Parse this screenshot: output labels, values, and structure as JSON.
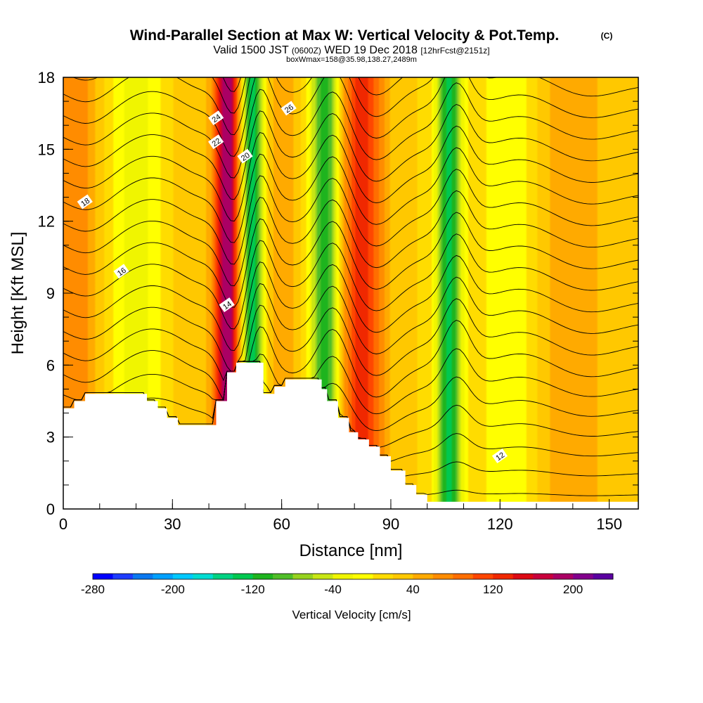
{
  "title": {
    "main": "Wind-Parallel Section at Max W: Vertical Velocity & Pot.Temp.",
    "copyright": "(C)",
    "valid_prefix": "Valid 1500 JST",
    "valid_utc": "(0600Z)",
    "valid_date": "WED 19 Dec 2018",
    "forecast": "[12hrFcst@2151z]",
    "box_info": "boxWmax=158@35.98,138.27,2489m"
  },
  "chart_data": {
    "type": "heatmap",
    "xlabel": "Distance [nm]",
    "ylabel": "Height [Kft MSL]",
    "xlim": [
      0,
      158
    ],
    "ylim": [
      0,
      18
    ],
    "x_ticks": [
      0,
      30,
      60,
      90,
      120,
      150
    ],
    "y_ticks": [
      0,
      3,
      6,
      9,
      12,
      15,
      18
    ],
    "grid": false,
    "colorbar": {
      "label": "Vertical Velocity [cm/s]",
      "ticks": [
        -280,
        -200,
        -120,
        -40,
        40,
        120,
        200
      ],
      "colors": [
        "#0000ff",
        "#1e3cff",
        "#0a78f0",
        "#00a0ff",
        "#00c8ff",
        "#00dcd2",
        "#00d282",
        "#00c850",
        "#1eb41e",
        "#50be28",
        "#96d21e",
        "#c8e614",
        "#f0f500",
        "#ffff00",
        "#ffdc00",
        "#ffc800",
        "#ffaa00",
        "#ff8c00",
        "#ff6e00",
        "#ff4600",
        "#f02800",
        "#dc0a14",
        "#c8003c",
        "#aa0064",
        "#82008c",
        "#5a00a0"
      ]
    },
    "velocity_bands": [
      {
        "x": 3,
        "w": 6,
        "value": 60
      },
      {
        "x": 20,
        "w": 7,
        "value": -50
      },
      {
        "x": 35,
        "w": 4,
        "value": 20
      },
      {
        "x": 45,
        "w": 3.5,
        "value": 180
      },
      {
        "x": 52,
        "w": 3,
        "value": -160
      },
      {
        "x": 60,
        "w": 5,
        "value": 30
      },
      {
        "x": 72,
        "w": 4,
        "value": -140
      },
      {
        "x": 82,
        "w": 6,
        "value": 110
      },
      {
        "x": 106,
        "w": 3.5,
        "value": -150
      },
      {
        "x": 122,
        "w": 7,
        "value": -40
      },
      {
        "x": 140,
        "w": 8,
        "value": 40
      }
    ],
    "terrain": [
      [
        0,
        4.2
      ],
      [
        3,
        4.2
      ],
      [
        3,
        4.5
      ],
      [
        6,
        4.5
      ],
      [
        6,
        4.8
      ],
      [
        23,
        4.8
      ],
      [
        23,
        4.5
      ],
      [
        26,
        4.5
      ],
      [
        26,
        4.2
      ],
      [
        28.5,
        4.2
      ],
      [
        28.5,
        3.8
      ],
      [
        31.5,
        3.8
      ],
      [
        31.5,
        3.5
      ],
      [
        42,
        3.5
      ],
      [
        42,
        4.5
      ],
      [
        45,
        4.5
      ],
      [
        45,
        5.7
      ],
      [
        47.5,
        5.7
      ],
      [
        47.5,
        6.1
      ],
      [
        55,
        6.1
      ],
      [
        55,
        4.8
      ],
      [
        58,
        4.8
      ],
      [
        58,
        5.1
      ],
      [
        61,
        5.1
      ],
      [
        61,
        5.4
      ],
      [
        71,
        5.4
      ],
      [
        71,
        5.0
      ],
      [
        72.5,
        5.0
      ],
      [
        72.5,
        4.5
      ],
      [
        75.5,
        4.5
      ],
      [
        75.5,
        3.8
      ],
      [
        78.5,
        3.8
      ],
      [
        78.5,
        3.2
      ],
      [
        81,
        3.2
      ],
      [
        81,
        2.9
      ],
      [
        84,
        2.9
      ],
      [
        84,
        2.6
      ],
      [
        87,
        2.6
      ],
      [
        87,
        2.2
      ],
      [
        90,
        2.2
      ],
      [
        90,
        1.6
      ],
      [
        94,
        1.6
      ],
      [
        94,
        1.0
      ],
      [
        97,
        1.0
      ],
      [
        97,
        0.6
      ],
      [
        100,
        0.6
      ],
      [
        100,
        0.3
      ],
      [
        158,
        0.3
      ]
    ],
    "theta_contours": [
      {
        "level": 12,
        "label_at": 120
      },
      {
        "level": 14,
        "label_at": 45
      },
      {
        "level": 16,
        "label_at": 16
      },
      {
        "level": 18,
        "label_at": 6
      },
      {
        "level": 20,
        "label_at": 50
      },
      {
        "level": 22,
        "label_at": 42
      },
      {
        "level": 24,
        "label_at": 42
      },
      {
        "level": 26,
        "label_at": 62
      }
    ]
  }
}
